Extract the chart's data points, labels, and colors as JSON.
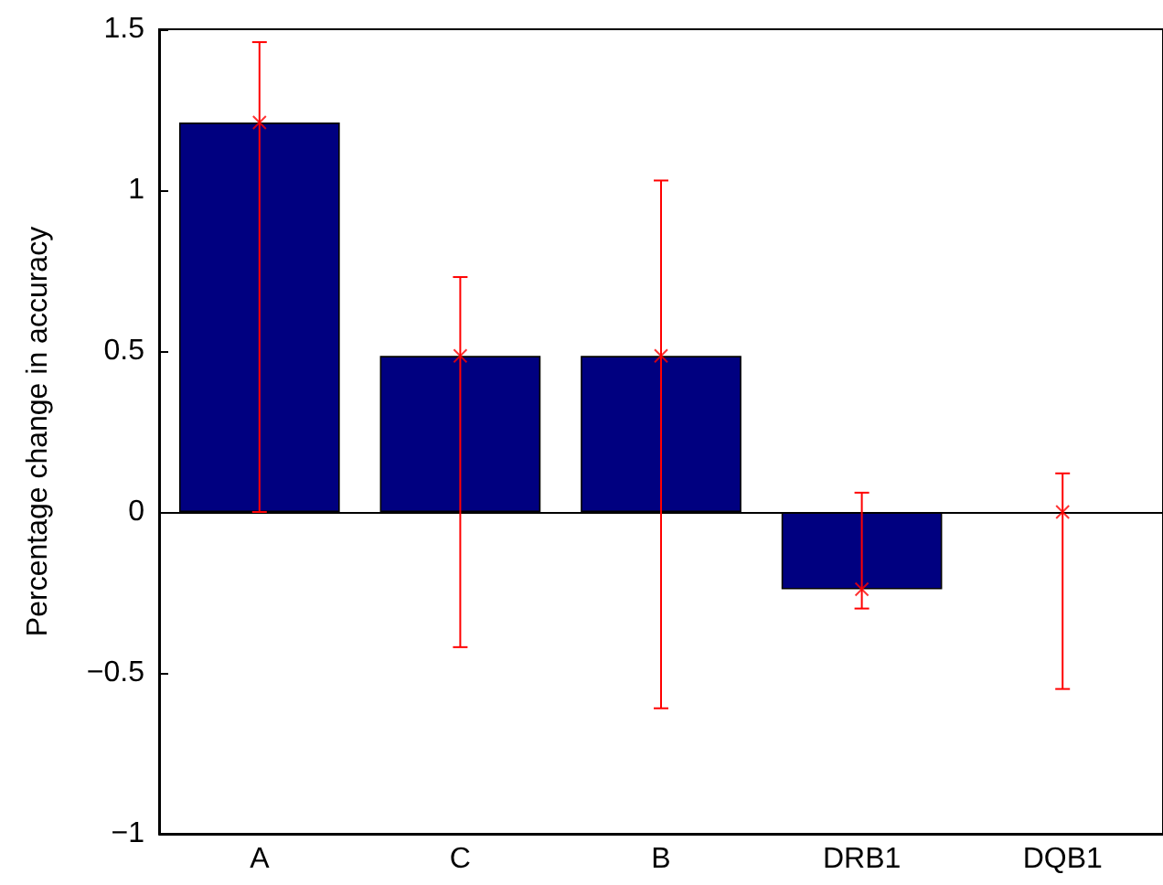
{
  "chart_data": {
    "type": "bar",
    "ylabel": "Percentage change in accuracy",
    "categories": [
      "A",
      "C",
      "B",
      "DRB1",
      "DQB1"
    ],
    "series": [
      {
        "color": "#000080",
        "values": [
          1.21,
          0.485,
          0.485,
          -0.24,
          0
        ],
        "errors": [
          [
            0,
            1.46
          ],
          [
            -0.42,
            0.73
          ],
          [
            -0.61,
            1.03
          ],
          [
            -0.3,
            0.06
          ],
          [
            -0.55,
            0.12
          ]
        ]
      },
      {
        "type": "scatter",
        "color": "#ff0000",
        "marker": "cross",
        "x": [
          "A",
          "C",
          "B",
          "DRB1",
          "DQB1"
        ],
        "values": [
          1.21,
          0.485,
          0.485,
          -0.24,
          0
        ]
      }
    ],
    "ref_lines": [
      {
        "axis": "y",
        "value": 0,
        "color": "#000000"
      }
    ],
    "ylim": [
      -1,
      1.5
    ],
    "yticks": [
      -1,
      -0.5,
      0,
      0.5,
      1,
      1.5
    ],
    "grid": false
  }
}
